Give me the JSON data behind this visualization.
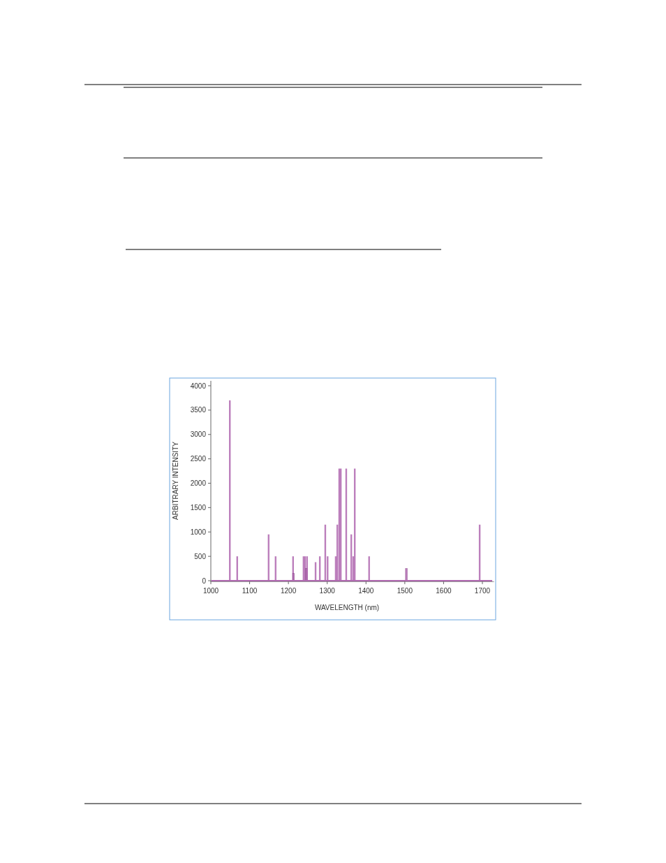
{
  "chart_data": {
    "type": "bar",
    "xlabel": "WAVELENGTH (nm)",
    "ylabel": "ARBITRARY INTENSITY",
    "color": "#b069b0",
    "x": [
      1049,
      1068,
      1149,
      1167,
      1212,
      1213,
      1239,
      1243,
      1246,
      1248,
      1270,
      1281,
      1295,
      1301,
      1322,
      1326,
      1331,
      1335,
      1349,
      1362,
      1367,
      1371,
      1408,
      1504,
      1693
    ],
    "values": [
      3700,
      500,
      950,
      500,
      500,
      150,
      500,
      500,
      250,
      500,
      380,
      500,
      1150,
      500,
      500,
      1150,
      2300,
      2300,
      2300,
      950,
      500,
      2300,
      500,
      250,
      1150
    ],
    "xlim": [
      1000,
      1730
    ],
    "xticks": [
      1000,
      1100,
      1200,
      1300,
      1400,
      1500,
      1600,
      1700
    ],
    "ylim": [
      0,
      4100
    ],
    "yticks": [
      0,
      500,
      1000,
      1500,
      2000,
      2500,
      3000,
      3500,
      4000
    ]
  }
}
